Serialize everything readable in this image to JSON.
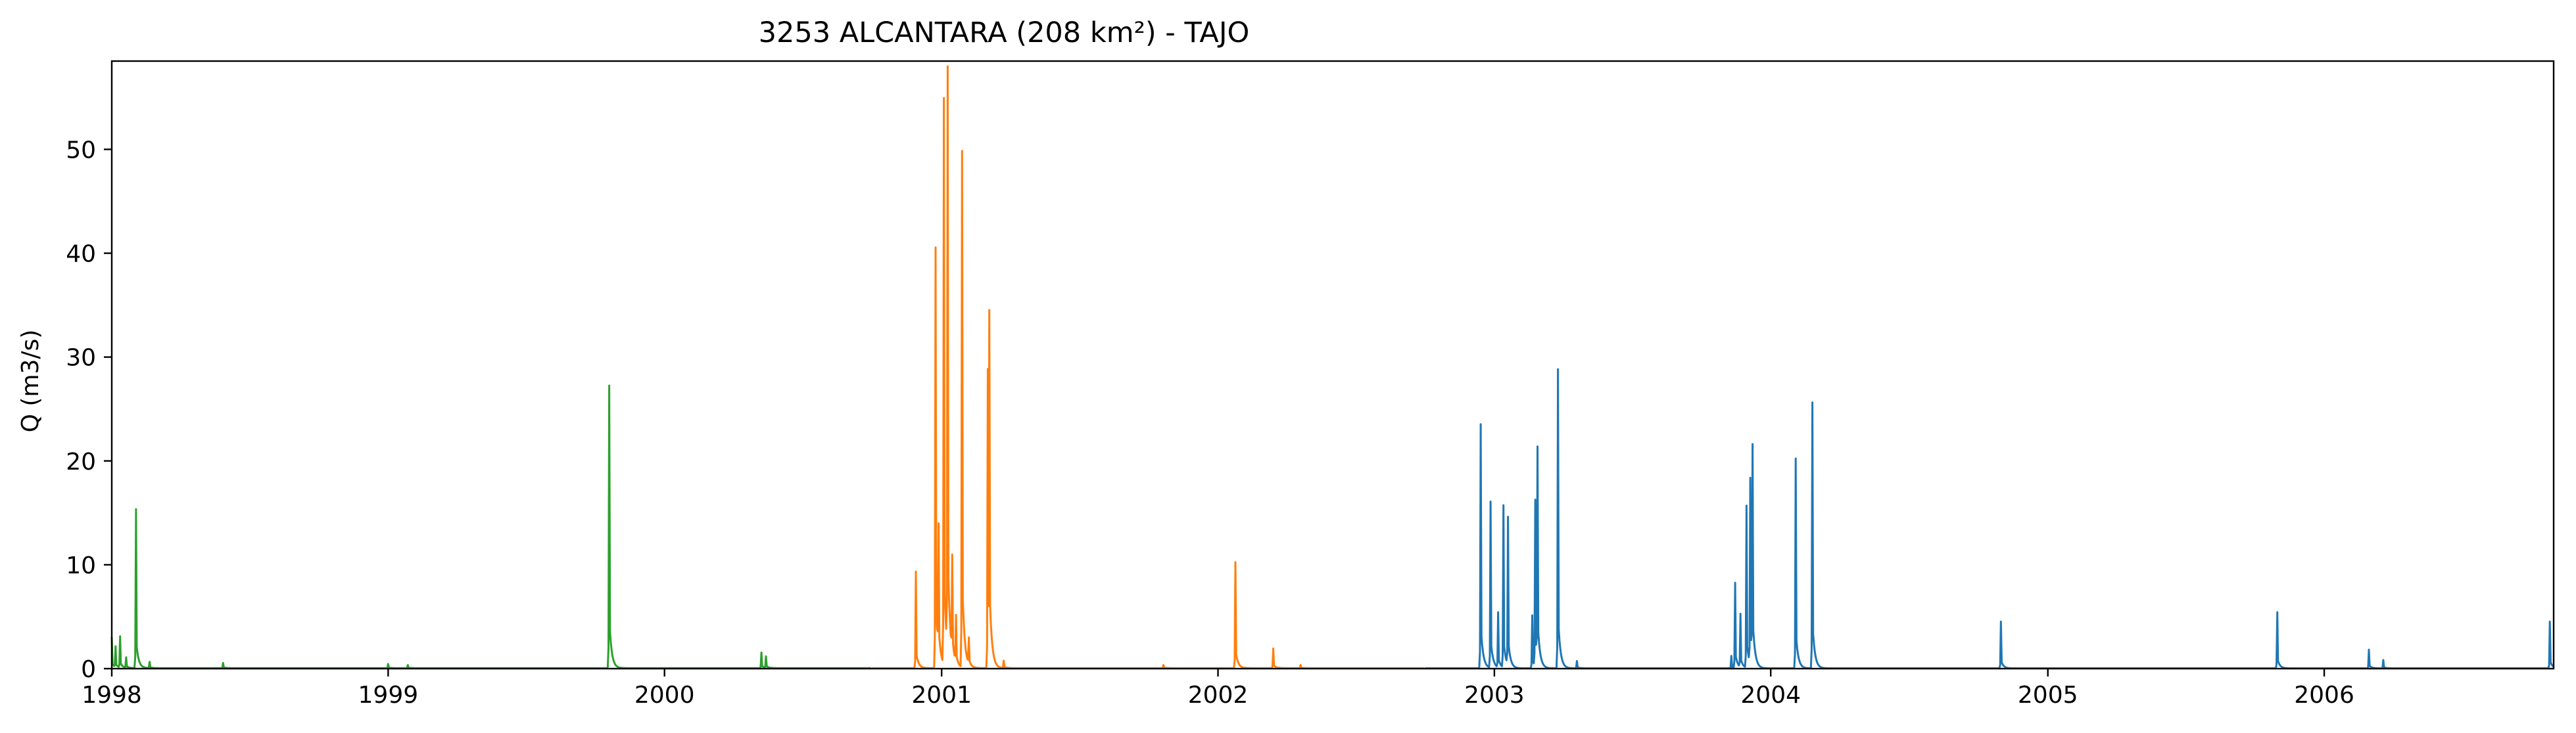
{
  "chart_data": {
    "type": "line",
    "title": "3253 ALCANTARA (208 km²) - TAJO",
    "xlabel": "",
    "ylabel": "Q (m3/s)",
    "xlim": [
      "1998-01-01",
      "2006-10-31"
    ],
    "ylim": [
      0,
      58.5
    ],
    "x_ticks": [
      "1998",
      "1999",
      "2000",
      "2001",
      "2002",
      "2003",
      "2004",
      "2005",
      "2006"
    ],
    "y_ticks": [
      0,
      10,
      20,
      30,
      40,
      50
    ],
    "grid": false,
    "legend": "none",
    "colors": {
      "green": "#2ca02c",
      "orange": "#ff7f0e",
      "blue": "#1f77b4"
    },
    "series": [
      {
        "color": "#2ca02c",
        "baseline": 0.05,
        "segment": [
          "1998-01-01",
          "2000-09-30"
        ],
        "peaks": [
          [
            "1998-01-01",
            3.0
          ],
          [
            "1998-01-06",
            2.0
          ],
          [
            "1998-01-12",
            3.0
          ],
          [
            "1998-01-20",
            1.0
          ],
          [
            "1998-02-02",
            15.3
          ],
          [
            "1998-02-20",
            0.6
          ],
          [
            "1998-05-28",
            0.5
          ],
          [
            "1999-01-01",
            0.4
          ],
          [
            "1999-01-27",
            0.3
          ],
          [
            "1999-10-20",
            27.2
          ],
          [
            "2000-05-08",
            1.5
          ],
          [
            "2000-05-14",
            1.1
          ]
        ]
      },
      {
        "color": "#ff7f0e",
        "baseline": 0.05,
        "segment": [
          "2000-10-01",
          "2002-09-30"
        ],
        "peaks": [
          [
            "2000-11-28",
            9.3
          ],
          [
            "2000-12-24",
            40.5
          ],
          [
            "2000-12-28",
            12.0
          ],
          [
            "2001-01-04",
            54.5
          ],
          [
            "2001-01-09",
            56.0
          ],
          [
            "2001-01-15",
            9.3
          ],
          [
            "2001-01-20",
            4.5
          ],
          [
            "2001-01-28",
            49.7
          ],
          [
            "2001-02-06",
            2.5
          ],
          [
            "2001-03-03",
            28.8
          ],
          [
            "2001-03-05",
            31.8
          ],
          [
            "2001-03-24",
            0.7
          ],
          [
            "2001-10-21",
            0.3
          ],
          [
            "2002-01-24",
            10.2
          ],
          [
            "2002-03-15",
            1.9
          ],
          [
            "2002-04-20",
            0.3
          ]
        ]
      },
      {
        "color": "#1f77b4",
        "baseline": 0.03,
        "segment": [
          "2002-10-01",
          "2006-10-31"
        ],
        "peaks": [
          [
            "2002-12-14",
            23.5
          ],
          [
            "2002-12-27",
            16.0
          ],
          [
            "2003-01-06",
            5.3
          ],
          [
            "2003-01-13",
            15.6
          ],
          [
            "2003-01-19",
            14.2
          ],
          [
            "2003-02-20",
            5.1
          ],
          [
            "2003-02-24",
            16.0
          ],
          [
            "2003-02-27",
            20.2
          ],
          [
            "2003-03-26",
            28.8
          ],
          [
            "2003-04-20",
            0.7
          ],
          [
            "2003-11-10",
            1.2
          ],
          [
            "2003-11-15",
            8.2
          ],
          [
            "2003-11-22",
            5.1
          ],
          [
            "2003-11-30",
            15.6
          ],
          [
            "2003-12-05",
            17.8
          ],
          [
            "2003-12-08",
            20.2
          ],
          [
            "2004-02-03",
            20.2
          ],
          [
            "2004-02-25",
            25.6
          ],
          [
            "2004-10-31",
            4.5
          ],
          [
            "2005-10-31",
            5.4
          ],
          [
            "2006-03-01",
            1.8
          ],
          [
            "2006-03-20",
            0.8
          ],
          [
            "2006-10-26",
            4.5
          ]
        ]
      }
    ]
  }
}
